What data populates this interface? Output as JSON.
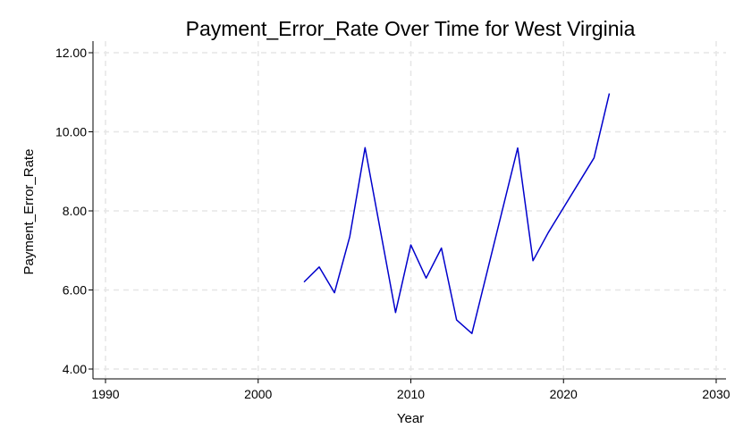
{
  "chart_data": {
    "type": "line",
    "title": "Payment_Error_Rate Over Time for West Virginia",
    "xlabel": "Year",
    "ylabel": "Payment_Error_Rate",
    "xlim": [
      1990,
      2030
    ],
    "ylim": [
      4,
      12
    ],
    "xticks": [
      1990,
      2000,
      2010,
      2020,
      2030
    ],
    "xtick_labels": [
      "1990",
      "2000",
      "2010",
      "2020",
      "2030"
    ],
    "yticks": [
      4,
      6,
      8,
      10,
      12
    ],
    "ytick_labels": [
      "4.00",
      "6.00",
      "8.00",
      "10.00",
      "12.00"
    ],
    "grid": true,
    "line_color": "#0000cc",
    "grid_color": "#e6e6e6",
    "series": [
      {
        "x": [
          2003,
          2004,
          2005,
          2006,
          2007,
          2009,
          2010,
          2011,
          2012,
          2013,
          2014,
          2017,
          2018,
          2019,
          2022,
          2023
        ],
        "y": [
          6.2,
          6.58,
          5.93,
          7.35,
          9.6,
          5.43,
          7.14,
          6.3,
          7.06,
          5.24,
          4.9,
          9.59,
          6.74,
          7.45,
          9.34,
          10.97
        ]
      }
    ]
  }
}
